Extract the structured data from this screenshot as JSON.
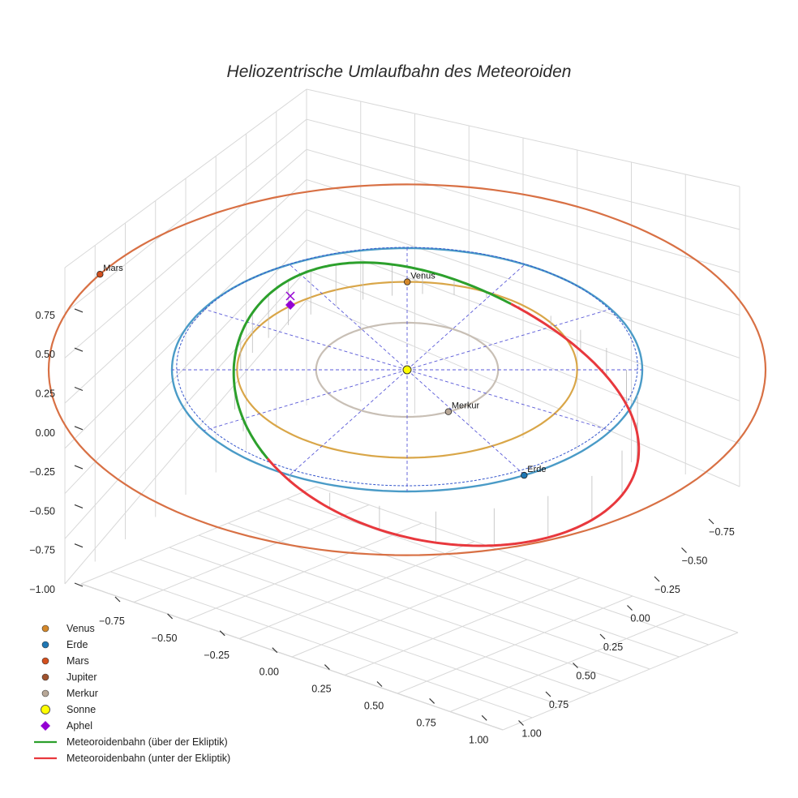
{
  "chart_data": {
    "type": "line",
    "title": "Heliozentrische Umlaufbahn des Meteoroiden",
    "x_ticks": [
      "−0.75",
      "−0.50",
      "−0.25",
      "0.00",
      "0.25",
      "0.50",
      "0.75",
      "1.00"
    ],
    "y_ticks": [
      "−0.75",
      "−0.50",
      "−0.25",
      "0.00",
      "0.25",
      "0.50",
      "0.75",
      "1.00"
    ],
    "z_ticks": [
      "−1.00",
      "−0.75",
      "−0.50",
      "−0.25",
      "0.00",
      "0.25",
      "0.50",
      "0.75"
    ],
    "grid": true,
    "legend_position": "bottom-left",
    "legend": [
      {
        "label": "Venus",
        "kind": "dot",
        "color": "#d4882a"
      },
      {
        "label": "Erde",
        "kind": "dot",
        "color": "#1f77b4"
      },
      {
        "label": "Mars",
        "kind": "dot",
        "color": "#d4501e"
      },
      {
        "label": "Jupiter",
        "kind": "dot",
        "color": "#a0522d"
      },
      {
        "label": "Merkur",
        "kind": "dot",
        "color": "#b8a898"
      },
      {
        "label": "Sonne",
        "kind": "bigdot",
        "color": "#ffff00"
      },
      {
        "label": "Aphel",
        "kind": "diamond",
        "color": "#9400d3"
      },
      {
        "label": "Meteoroidenbahn (über der Ekliptik)",
        "kind": "line",
        "color": "#2ca02c"
      },
      {
        "label": "Meteoroidenbahn (unter der Ekliptik)",
        "kind": "line",
        "color": "#e8383d"
      }
    ],
    "orbits": [
      {
        "name": "Merkur",
        "a": 0.387,
        "color": "#c8bfb5"
      },
      {
        "name": "Venus",
        "a": 0.723,
        "color": "#d9a648"
      },
      {
        "name": "Erde",
        "a": 1.0,
        "color": "#4a9bc7"
      },
      {
        "name": "Mars",
        "a": 1.524,
        "color": "#d87044"
      }
    ],
    "planet_labels": [
      {
        "name": "Venus",
        "label": "Venus",
        "color": "#d4882a"
      },
      {
        "name": "Erde",
        "label": "Erde",
        "color": "#1f77b4"
      },
      {
        "name": "Mars",
        "label": "Mars",
        "color": "#d4501e"
      },
      {
        "name": "Merkur",
        "label": "Merkur",
        "color": "#b8a898"
      }
    ]
  }
}
